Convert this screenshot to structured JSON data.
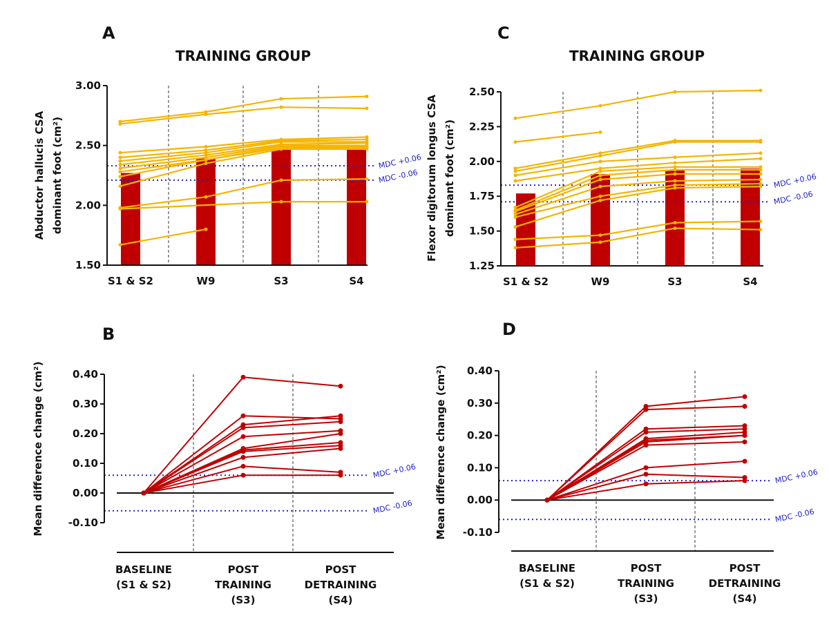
{
  "colors": {
    "bar": "#c00000",
    "subject_line_top": "#f5b400",
    "subject_line_bottom": "#c00000",
    "mdc_line": "#2020c8",
    "axis": "#111111"
  },
  "chart_data": [
    {
      "panel": "A",
      "type": "bar",
      "title": "TRAINING GROUP",
      "ylabel": [
        "Abductor hallucis CSA",
        "dominant foot (cm²)"
      ],
      "ylim": [
        1.5,
        3.0
      ],
      "yticks": [
        "1.50",
        "2.00",
        "2.50",
        "3.00"
      ],
      "categories": [
        "S1 & S2",
        "W9",
        "S3",
        "S4"
      ],
      "bar_values": [
        2.27,
        2.39,
        2.48,
        2.5
      ],
      "mdc": [
        {
          "label": "MDC +0.06",
          "value": 2.33
        },
        {
          "label": "MDC -0.06",
          "value": 2.21
        }
      ],
      "series": [
        {
          "name": "subject-1",
          "values": [
            2.7,
            2.78,
            2.89,
            2.91
          ]
        },
        {
          "name": "subject-2",
          "values": [
            2.68,
            2.76,
            2.82,
            2.81
          ]
        },
        {
          "name": "subject-3",
          "values": [
            2.44,
            2.49,
            2.55,
            2.57
          ]
        },
        {
          "name": "subject-4",
          "values": [
            2.4,
            2.46,
            2.54,
            2.55
          ]
        },
        {
          "name": "subject-5",
          "values": [
            2.37,
            2.44,
            2.53,
            2.53
          ]
        },
        {
          "name": "subject-6",
          "values": [
            2.34,
            2.42,
            2.51,
            2.52
          ]
        },
        {
          "name": "subject-7",
          "values": [
            2.31,
            2.4,
            2.5,
            2.5
          ]
        },
        {
          "name": "subject-8",
          "values": [
            2.28,
            2.38,
            2.49,
            2.49
          ]
        },
        {
          "name": "subject-9",
          "values": [
            2.24,
            2.38,
            2.48,
            2.48
          ]
        },
        {
          "name": "subject-10",
          "values": [
            2.16,
            2.35,
            2.47,
            2.47
          ]
        },
        {
          "name": "subject-11",
          "values": [
            1.98,
            2.07,
            2.21,
            2.22
          ]
        },
        {
          "name": "subject-12",
          "values": [
            1.97,
            null,
            2.03,
            2.03
          ]
        },
        {
          "name": "subject-13",
          "values": [
            1.67,
            1.8,
            null,
            null
          ]
        }
      ]
    },
    {
      "panel": "C",
      "type": "bar",
      "title": "TRAINING GROUP",
      "ylabel": [
        "Flexor digitorum longus CSA",
        "dominant foot (cm²)"
      ],
      "ylim": [
        1.25,
        2.5
      ],
      "yticks": [
        "1.25",
        "1.50",
        "1.75",
        "2.00",
        "2.25",
        "2.50"
      ],
      "categories": [
        "S1 & S2",
        "W9",
        "S3",
        "S4"
      ],
      "bar_values": [
        1.77,
        1.91,
        1.94,
        1.95
      ],
      "mdc": [
        {
          "label": "MDC +0.06",
          "value": 1.83
        },
        {
          "label": "MDC -0.06",
          "value": 1.71
        }
      ],
      "series": [
        {
          "name": "subject-1",
          "values": [
            2.31,
            2.4,
            2.5,
            2.51
          ]
        },
        {
          "name": "subject-2",
          "values": [
            2.14,
            2.21,
            null,
            null
          ]
        },
        {
          "name": "subject-3",
          "values": [
            1.95,
            2.06,
            2.15,
            2.15
          ]
        },
        {
          "name": "subject-4",
          "values": [
            1.93,
            2.04,
            2.14,
            2.14
          ]
        },
        {
          "name": "subject-5",
          "values": [
            1.9,
            2.0,
            2.03,
            2.06
          ]
        },
        {
          "name": "subject-6",
          "values": [
            1.86,
            1.95,
            1.99,
            2.02
          ]
        },
        {
          "name": "subject-7",
          "values": [
            1.67,
            1.93,
            1.96,
            1.96
          ]
        },
        {
          "name": "subject-8",
          "values": [
            1.65,
            1.9,
            1.94,
            1.94
          ]
        },
        {
          "name": "subject-9",
          "values": [
            1.64,
            1.87,
            1.91,
            1.91
          ]
        },
        {
          "name": "subject-10",
          "values": [
            1.62,
            1.82,
            1.86,
            1.87
          ]
        },
        {
          "name": "subject-11",
          "values": [
            1.6,
            1.75,
            1.83,
            1.84
          ]
        },
        {
          "name": "subject-12",
          "values": [
            1.53,
            1.72,
            1.81,
            1.82
          ]
        },
        {
          "name": "subject-13",
          "values": [
            1.44,
            1.47,
            1.56,
            1.57
          ]
        },
        {
          "name": "subject-14",
          "values": [
            1.38,
            1.42,
            1.52,
            1.51
          ]
        }
      ]
    },
    {
      "panel": "B",
      "type": "line",
      "ylabel": "Mean difference change (cm²)",
      "ylim": [
        -0.1,
        0.4
      ],
      "yticks": [
        "-0.10",
        "0.00",
        "0.10",
        "0.20",
        "0.30",
        "0.40"
      ],
      "categories": [
        [
          "BASELINE",
          "(S1 & S2)"
        ],
        [
          "POST",
          "TRAINING",
          "(S3)"
        ],
        [
          "POST",
          "DETRAINING",
          "(S4)"
        ]
      ],
      "mdc": [
        {
          "label": "MDC +0.06",
          "value": 0.06
        },
        {
          "label": "MDC -0.06",
          "value": -0.06
        }
      ],
      "series": [
        {
          "name": "subject-1",
          "values": [
            0,
            0.39,
            0.36
          ]
        },
        {
          "name": "subject-2",
          "values": [
            0,
            0.26,
            0.25
          ]
        },
        {
          "name": "subject-3",
          "values": [
            0,
            0.23,
            0.26
          ]
        },
        {
          "name": "subject-4",
          "values": [
            0,
            0.22,
            0.24
          ]
        },
        {
          "name": "subject-5",
          "values": [
            0,
            0.19,
            0.21
          ]
        },
        {
          "name": "subject-6",
          "values": [
            0,
            0.15,
            0.2
          ]
        },
        {
          "name": "subject-7",
          "values": [
            0,
            0.145,
            0.17
          ]
        },
        {
          "name": "subject-8",
          "values": [
            0,
            0.14,
            0.16
          ]
        },
        {
          "name": "subject-9",
          "values": [
            0,
            0.12,
            0.15
          ]
        },
        {
          "name": "subject-10",
          "values": [
            0,
            0.09,
            0.07
          ]
        },
        {
          "name": "subject-11",
          "values": [
            0,
            0.06,
            0.06
          ]
        }
      ]
    },
    {
      "panel": "D",
      "type": "line",
      "ylabel": "Mean difference change (cm²)",
      "ylim": [
        -0.1,
        0.4
      ],
      "yticks": [
        "-0.10",
        "0.00",
        "0.10",
        "0.20",
        "0.30",
        "0.40"
      ],
      "categories": [
        [
          "BASELINE",
          "(S1 & S2)"
        ],
        [
          "POST",
          "TRAINING",
          "(S3)"
        ],
        [
          "POST",
          "DETRAINING",
          "(S4)"
        ]
      ],
      "mdc": [
        {
          "label": "MDC +0.06",
          "value": 0.06
        },
        {
          "label": "MDC -0.06",
          "value": -0.06
        }
      ],
      "series": [
        {
          "name": "subject-1",
          "values": [
            0,
            0.29,
            0.32
          ]
        },
        {
          "name": "subject-2",
          "values": [
            0,
            0.28,
            0.29
          ]
        },
        {
          "name": "subject-3",
          "values": [
            0,
            0.22,
            0.23
          ]
        },
        {
          "name": "subject-4",
          "values": [
            0,
            0.21,
            0.22
          ]
        },
        {
          "name": "subject-5",
          "values": [
            0,
            0.19,
            0.21
          ]
        },
        {
          "name": "subject-6",
          "values": [
            0,
            0.185,
            0.2
          ]
        },
        {
          "name": "subject-7",
          "values": [
            0,
            0.18,
            0.2
          ]
        },
        {
          "name": "subject-8",
          "values": [
            0,
            0.17,
            0.18
          ]
        },
        {
          "name": "subject-9",
          "values": [
            0,
            0.1,
            0.12
          ]
        },
        {
          "name": "subject-10",
          "values": [
            0,
            0.08,
            0.07
          ]
        },
        {
          "name": "subject-11",
          "values": [
            0,
            0.05,
            0.06
          ]
        }
      ]
    }
  ]
}
